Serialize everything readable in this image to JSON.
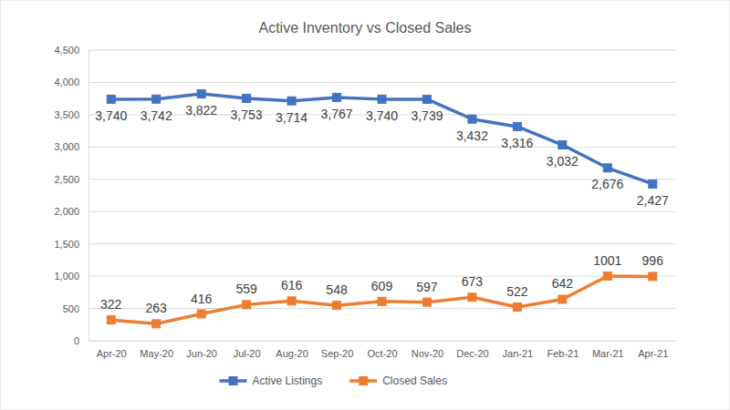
{
  "chart_data": {
    "type": "line",
    "title": "Active Inventory vs Closed Sales",
    "categories": [
      "Apr-20",
      "May-20",
      "Jun-20",
      "Jul-20",
      "Aug-20",
      "Sep-20",
      "Oct-20",
      "Nov-20",
      "Dec-20",
      "Jan-21",
      "Feb-21",
      "Mar-21",
      "Apr-21"
    ],
    "series": [
      {
        "name": "Active Listings",
        "color": "#4472c4",
        "marker": "square",
        "values": [
          3740,
          3742,
          3822,
          3753,
          3714,
          3767,
          3740,
          3739,
          3432,
          3316,
          3032,
          2676,
          2427
        ],
        "value_labels": [
          "3,740",
          "3,742",
          "3,822",
          "3,753",
          "3,714",
          "3,767",
          "3,740",
          "3,739",
          "3,432",
          "3,316",
          "3,032",
          "2,676",
          "2,427"
        ]
      },
      {
        "name": "Closed Sales",
        "color": "#ed7d31",
        "marker": "square",
        "values": [
          322,
          263,
          416,
          559,
          616,
          548,
          609,
          597,
          673,
          522,
          642,
          1001,
          996
        ]
      }
    ],
    "ylim": [
      0,
      4500
    ],
    "yticks": [
      0,
      500,
      {
        "value": 1000,
        "label": "1,000"
      },
      {
        "value": 1500,
        "label": "1,500"
      },
      {
        "value": 2000,
        "label": "2,000"
      },
      {
        "value": 2500,
        "label": "2,500"
      },
      {
        "value": 3000,
        "label": "3,000"
      },
      {
        "value": 3500,
        "label": "3,500"
      },
      {
        "value": 4000,
        "label": "4,000"
      },
      {
        "value": 4500,
        "label": "4,500"
      }
    ],
    "grid": true,
    "data_labels": true,
    "legend": "bottom"
  }
}
